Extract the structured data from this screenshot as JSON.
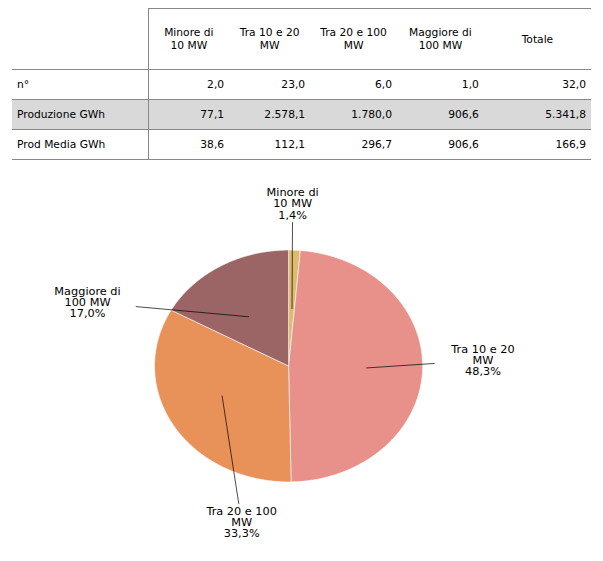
{
  "chart_data": [
    {
      "type": "table",
      "categories": [
        "Minore di\n10 MW",
        "Tra 10 e 20\nMW",
        "Tra 20 e 100\nMW",
        "Maggiore di\n100 MW",
        "Totale"
      ],
      "series": [
        {
          "name": "n°",
          "values": [
            2.0,
            23.0,
            6.0,
            1.0,
            32.0
          ],
          "value_labels": [
            "2,0",
            "23,0",
            "6,0",
            "1,0",
            "32,0"
          ]
        },
        {
          "name": "Produzione GWh",
          "color": "#d9d9d9",
          "values": [
            77.1,
            2578.1,
            1780.0,
            906.6,
            5341.8
          ],
          "value_labels": [
            "77,1",
            "2.578,1",
            "1.780,0",
            "906,6",
            "5.341,8"
          ]
        },
        {
          "name": "Prod Media GWh",
          "values": [
            38.6,
            112.1,
            296.7,
            906.6,
            166.9
          ],
          "value_labels": [
            "38,6",
            "112,1",
            "296,7",
            "906,6",
            "166,9"
          ]
        }
      ]
    },
    {
      "type": "pie",
      "categories": [
        "Minore di\n10 MW",
        "Tra 10 e 20\nMW",
        "Tra 20 e 100\nMW",
        "Maggiore di\n100 MW"
      ],
      "values": [
        1.4,
        48.3,
        33.3,
        17.0
      ],
      "value_labels": [
        "1,4%",
        "48,3%",
        "33,3%",
        "17,0%"
      ],
      "colors": [
        "#DEB96E",
        "#E8908A",
        "#E8925A",
        "#9B6565"
      ],
      "data_labels": true
    }
  ]
}
